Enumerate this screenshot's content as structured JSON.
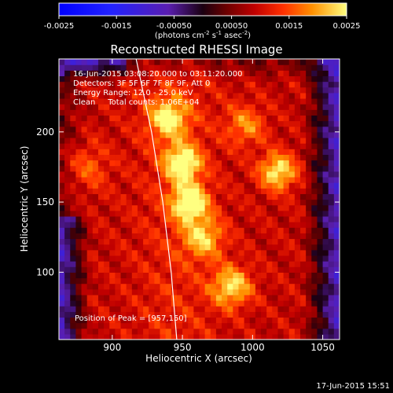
{
  "colorbar": {
    "tick_labels": [
      "-0.0025",
      "-0.0015",
      "-0.00050",
      "0.00050",
      "0.0015",
      "0.0025"
    ],
    "tick_values": [
      -0.0025,
      -0.0015,
      -0.0005,
      0.0005,
      0.0015,
      0.0025
    ],
    "range": [
      -0.0025,
      0.0025
    ],
    "units_prefix": "(photons cm",
    "units_exp1": "-2",
    "units_mid": " s",
    "units_exp2": "-1",
    "units_mid2": " asec",
    "units_exp3": "-2",
    "units_suffix": ")"
  },
  "footer": {
    "timestamp": "17-Jun-2015 15:51"
  },
  "chart_data": {
    "type": "heatmap",
    "title": "Reconstructed RHESSI Image",
    "xlabel": "Heliocentric X (arcsec)",
    "ylabel": "Heliocentric Y (arcsec)",
    "xlim": [
      862,
      1062
    ],
    "ylim": [
      52,
      252
    ],
    "xticks": [
      900,
      950,
      1000,
      1050
    ],
    "yticks": [
      100,
      150,
      200
    ],
    "annotations": [
      "16-Jun-2015 03:08:20.000 to 03:11:20.000",
      "Detectors: 3F 5F 6F 7F 8F 9F, Att 0",
      "Energy Range: 12.0 - 25.0 keV",
      "Clean     Total counts: 1.06E+04"
    ],
    "peak_label": "Position of Peak = [957,150]",
    "peak": [
      957,
      150
    ],
    "sources": [
      {
        "x": 950,
        "y": 178,
        "amp": 0.00235,
        "sigma": 9
      },
      {
        "x": 955,
        "y": 150,
        "amp": 0.00245,
        "sigma": 9
      },
      {
        "x": 940,
        "y": 210,
        "amp": 0.0019,
        "sigma": 10
      },
      {
        "x": 1018,
        "y": 172,
        "amp": 0.0021,
        "sigma": 9
      },
      {
        "x": 985,
        "y": 90,
        "amp": 0.0019,
        "sigma": 10
      },
      {
        "x": 965,
        "y": 125,
        "amp": 0.0016,
        "sigma": 10
      },
      {
        "x": 995,
        "y": 205,
        "amp": 0.0012,
        "sigma": 10
      },
      {
        "x": 880,
        "y": 175,
        "amp": 0.0009,
        "sigma": 12
      }
    ],
    "limb_curve": [
      [
        917,
        252
      ],
      [
        928,
        200
      ],
      [
        936,
        150
      ],
      [
        942,
        100
      ],
      [
        946,
        52
      ]
    ]
  }
}
